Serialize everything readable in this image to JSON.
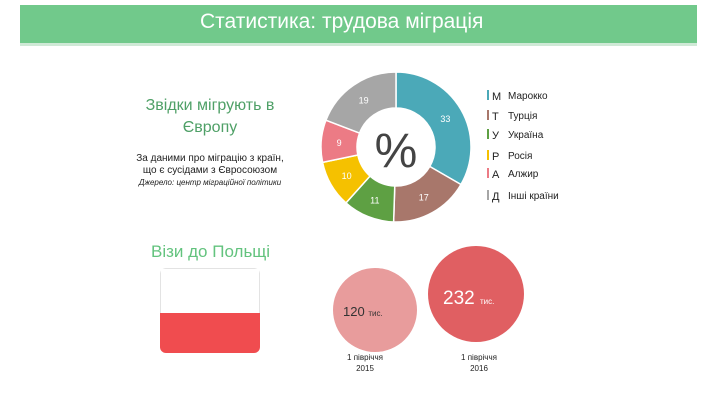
{
  "title": "Статистика: трудова міграція",
  "left": {
    "heading_line1": "Звідки мігрують в",
    "heading_line2": "Європу",
    "sub_line1": "За даними про міграцію з країн,",
    "sub_line2": "що є сусідами з Євросоюзом",
    "source": "Джерело: центр міграційної політики",
    "visas_title": "Візи до Польщі"
  },
  "center_symbol": "%",
  "chart_data": [
    {
      "type": "pie",
      "variant": "donut",
      "categories": [
        "Марокко",
        "Турція",
        "Україна",
        "Росія",
        "Алжир",
        "Інші країни"
      ],
      "legend_truncated": [
        "М",
        "Т",
        "У",
        "Р",
        "А",
        "Д"
      ],
      "values": [
        33,
        17,
        11,
        10,
        9,
        19
      ],
      "colors": [
        "#4ba9b8",
        "#a8776b",
        "#5ea043",
        "#f5c100",
        "#ec7b85",
        "#a6a6a6"
      ],
      "legend_position": "right"
    },
    {
      "type": "bubble",
      "categories": [
        "1 півріччя 2015",
        "1 півріччя 2016"
      ],
      "values": [
        120,
        232
      ],
      "unit": "тис.",
      "colors": [
        "#e89c9c",
        "#e05f62"
      ]
    }
  ],
  "bubbles": [
    {
      "value": "120",
      "unit": "тис.",
      "period_line1": "1 півріччя",
      "period_line2": "2015"
    },
    {
      "value": "232",
      "unit": "тис.",
      "period_line1": "1 півріччя",
      "period_line2": "2016"
    }
  ]
}
